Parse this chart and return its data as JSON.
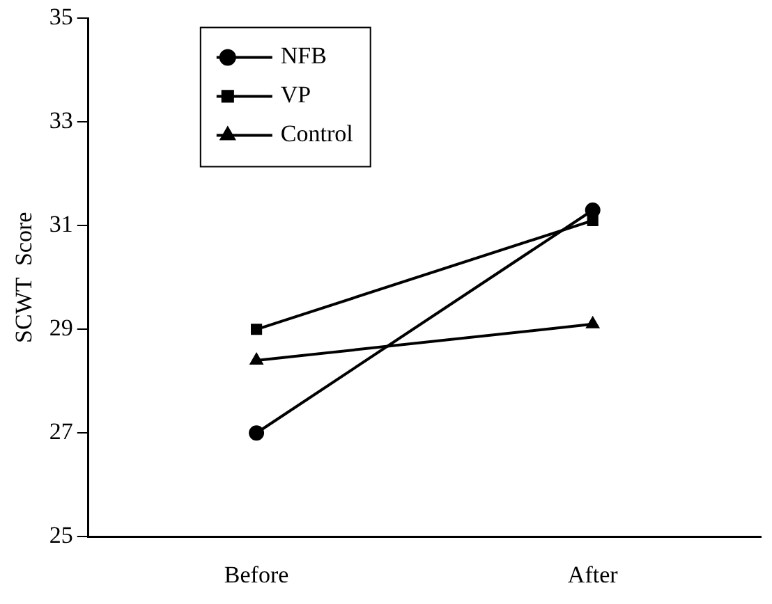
{
  "chart_data": {
    "type": "line",
    "ylabel": "SCWT  Score",
    "categories": [
      "Before",
      "After"
    ],
    "series": [
      {
        "name": "NFB",
        "color": "#000000",
        "marker": "circle",
        "values": [
          27.0,
          31.3
        ]
      },
      {
        "name": "VP",
        "color": "#000000",
        "marker": "square",
        "values": [
          29.0,
          31.1
        ]
      },
      {
        "name": "Control",
        "color": "#000000",
        "marker": "triangle",
        "values": [
          28.4,
          29.1
        ]
      }
    ],
    "ylim": [
      25,
      35
    ],
    "yticks": [
      25,
      27,
      29,
      31,
      33,
      35
    ],
    "grid": false,
    "legend": "top left",
    "line_style": "solid"
  }
}
